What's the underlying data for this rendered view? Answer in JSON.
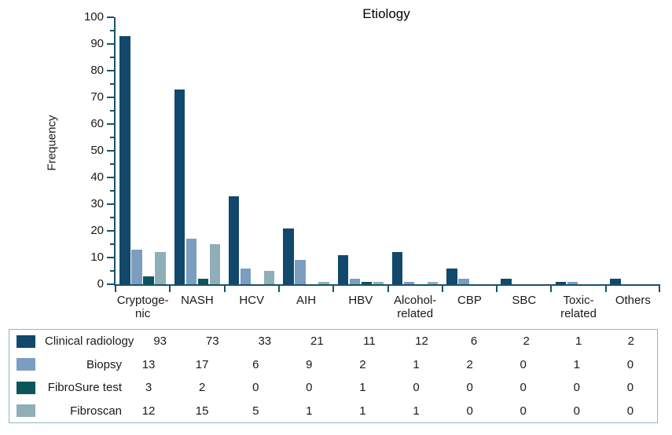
{
  "chart_data": {
    "type": "bar",
    "title": "Etiology",
    "xlabel": "",
    "ylabel": "Frequency",
    "ylim": [
      0,
      100
    ],
    "ytick_step": 10,
    "ytick_minor_step": 5,
    "grid": false,
    "legend_position": "table-below",
    "axis_color": "#17536A",
    "table_border_color": "#8FB9C1",
    "categories": [
      "Cryptoge-\nnic",
      "NASH",
      "HCV",
      "AIH",
      "HBV",
      "Alcohol-\nrelated",
      "CBP",
      "SBC",
      "Toxic-\nrelated",
      "Others"
    ],
    "series": [
      {
        "name": "Clinical radiology",
        "color": "#11486B",
        "values": [
          93,
          73,
          33,
          21,
          11,
          12,
          6,
          2,
          1,
          2
        ]
      },
      {
        "name": "Biopsy",
        "color": "#7B9DC0",
        "values": [
          13,
          17,
          6,
          9,
          2,
          1,
          2,
          0,
          1,
          0
        ]
      },
      {
        "name": "FibroSure test",
        "color": "#0B555C",
        "values": [
          3,
          2,
          0,
          0,
          1,
          0,
          0,
          0,
          0,
          0
        ]
      },
      {
        "name": "Fibroscan",
        "color": "#8EAFB7",
        "values": [
          12,
          15,
          5,
          1,
          1,
          1,
          0,
          0,
          0,
          0
        ]
      }
    ]
  }
}
